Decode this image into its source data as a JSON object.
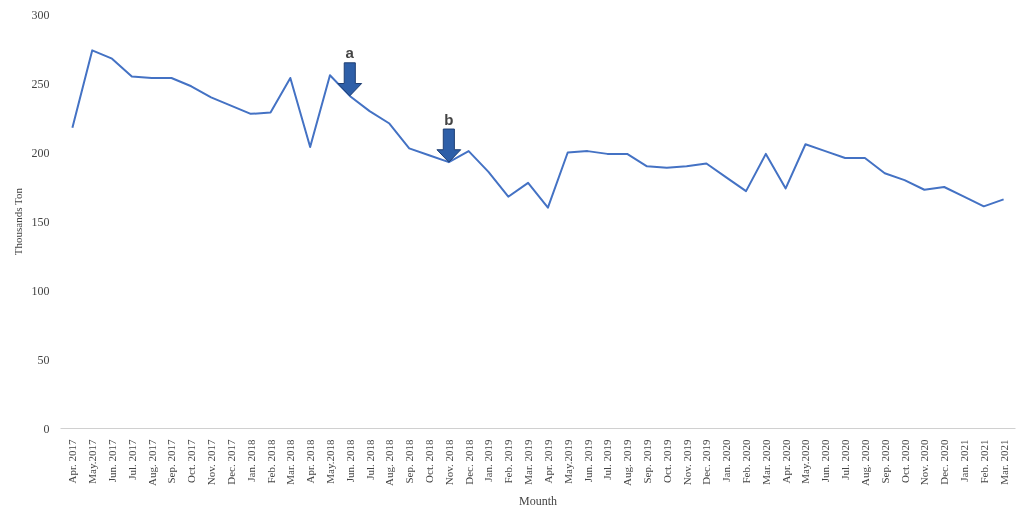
{
  "chart_data": {
    "type": "line",
    "xlabel": "Mounth",
    "ylabel": "Thousands Ton",
    "categories": [
      "Apr. 2017",
      "May.2017",
      "Jun. 2017",
      "Jul. 2017",
      "Aug. 2017",
      "Sep. 2017",
      "Oct. 2017",
      "Nov. 2017",
      "Dec. 2017",
      "Jan. 2018",
      "Feb. 2018",
      "Mar. 2018",
      "Apr. 2018",
      "May.2018",
      "Jun. 2018",
      "Jul. 2018",
      "Aug. 2018",
      "Sep. 2018",
      "Oct. 2018",
      "Nov. 2018",
      "Dec. 2018",
      "Jan. 2019",
      "Feb. 2019",
      "Mar. 2019",
      "Apr. 2019",
      "May.2019",
      "Jun. 2019",
      "Jul. 2019",
      "Aug. 2019",
      "Sep. 2019",
      "Oct. 2019",
      "Nov. 2019",
      "Dec. 2019",
      "Jan. 2020",
      "Feb. 2020",
      "Mar. 2020",
      "Apr. 2020",
      "May.2020",
      "Jun. 2020",
      "Jul. 2020",
      "Aug. 2020",
      "Sep. 2020",
      "Oct. 2020",
      "Nov. 2020",
      "Dec. 2020",
      "Jan. 2021",
      "Feb. 2021",
      "Mar. 2021"
    ],
    "series": [
      {
        "color": "#4472c4",
        "values": [
          218,
          274,
          268,
          255,
          254,
          254,
          248,
          240,
          234,
          228,
          229,
          254,
          204,
          256,
          241,
          230,
          221,
          203,
          198,
          193,
          201,
          186,
          168,
          178,
          160,
          200,
          201,
          199,
          199,
          190,
          189,
          190,
          192,
          182,
          172,
          199,
          174,
          206,
          201,
          196,
          196,
          185,
          180,
          173,
          175,
          168,
          161,
          166
        ]
      }
    ],
    "ylim": [
      0,
      300
    ],
    "yticks": [
      0,
      50,
      100,
      150,
      200,
      250,
      300
    ],
    "grid": false,
    "marker": "none",
    "line_style": "solid",
    "annotations": [
      {
        "text": "a",
        "x": "Jun. 2018",
        "y": 241
      },
      {
        "text": "b",
        "x": "Nov. 2018",
        "y": 193
      }
    ]
  }
}
